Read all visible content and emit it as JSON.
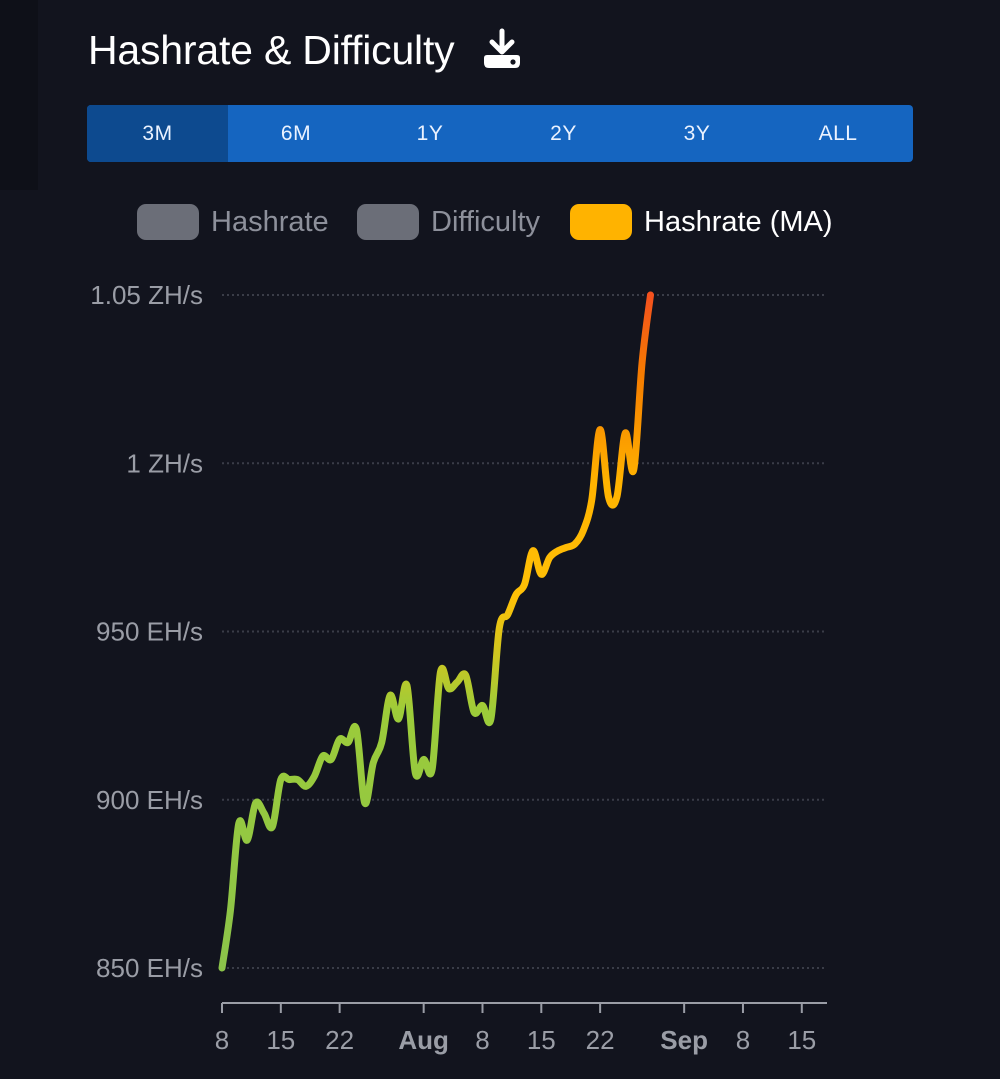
{
  "header": {
    "title": "Hashrate & Difficulty",
    "download_icon": "download-icon"
  },
  "range": {
    "active": "3M",
    "options": [
      "3M",
      "6M",
      "1Y",
      "2Y",
      "3Y",
      "ALL"
    ]
  },
  "colors": {
    "background": "#12141e",
    "range_bar": "#1565c0",
    "range_active": "#0d4a8f",
    "legend_off": "#6b6e78",
    "legend_on": "#ffb300",
    "line_gradient": [
      "#8bc34a",
      "#9ccc3a",
      "#ffc107",
      "#ffb300",
      "#f57c00",
      "#f4511e"
    ]
  },
  "chart_data": {
    "type": "line",
    "title": "",
    "legend": [
      {
        "name": "Hashrate",
        "enabled": false
      },
      {
        "name": "Difficulty",
        "enabled": false
      },
      {
        "name": "Hashrate (MA)",
        "enabled": true
      }
    ],
    "legend_position": "top",
    "y_ticks": [
      {
        "value": 850,
        "label": "850 EH/s"
      },
      {
        "value": 900,
        "label": "900 EH/s"
      },
      {
        "value": 950,
        "label": "950 EH/s"
      },
      {
        "value": 1000,
        "label": "1 ZH/s"
      },
      {
        "value": 1050,
        "label": "1.05 ZH/s"
      }
    ],
    "ylim": [
      850,
      1050
    ],
    "x_unit": "days",
    "xlim": [
      "2024-07-08",
      "2024-09-18"
    ],
    "x_ticks": [
      {
        "date": "2024-07-08",
        "label": "8",
        "bold": false
      },
      {
        "date": "2024-07-15",
        "label": "15",
        "bold": false
      },
      {
        "date": "2024-07-22",
        "label": "22",
        "bold": false
      },
      {
        "date": "2024-08-01",
        "label": "Aug",
        "bold": true
      },
      {
        "date": "2024-08-08",
        "label": "8",
        "bold": false
      },
      {
        "date": "2024-08-15",
        "label": "15",
        "bold": false
      },
      {
        "date": "2024-08-22",
        "label": "22",
        "bold": false
      },
      {
        "date": "2024-09-01",
        "label": "Sep",
        "bold": true
      },
      {
        "date": "2024-09-08",
        "label": "8",
        "bold": false
      },
      {
        "date": "2024-09-15",
        "label": "15",
        "bold": false
      }
    ],
    "grid": "horizontal-dotted",
    "series": [
      {
        "name": "Hashrate (MA)",
        "points": [
          [
            "2024-07-08",
            850
          ],
          [
            "2024-07-09",
            867
          ],
          [
            "2024-07-10",
            893
          ],
          [
            "2024-07-11",
            888
          ],
          [
            "2024-07-12",
            899
          ],
          [
            "2024-07-13",
            896
          ],
          [
            "2024-07-14",
            892
          ],
          [
            "2024-07-15",
            906
          ],
          [
            "2024-07-16",
            906
          ],
          [
            "2024-07-17",
            906
          ],
          [
            "2024-07-18",
            904
          ],
          [
            "2024-07-19",
            907
          ],
          [
            "2024-07-20",
            913
          ],
          [
            "2024-07-21",
            912
          ],
          [
            "2024-07-22",
            918
          ],
          [
            "2024-07-23",
            917
          ],
          [
            "2024-07-24",
            921
          ],
          [
            "2024-07-25",
            899
          ],
          [
            "2024-07-26",
            911
          ],
          [
            "2024-07-27",
            917
          ],
          [
            "2024-07-28",
            931
          ],
          [
            "2024-07-29",
            924
          ],
          [
            "2024-07-30",
            934
          ],
          [
            "2024-07-31",
            908
          ],
          [
            "2024-08-01",
            912
          ],
          [
            "2024-08-02",
            909
          ],
          [
            "2024-08-03",
            938
          ],
          [
            "2024-08-04",
            933
          ],
          [
            "2024-08-05",
            935
          ],
          [
            "2024-08-06",
            937
          ],
          [
            "2024-08-07",
            926
          ],
          [
            "2024-08-08",
            928
          ],
          [
            "2024-08-09",
            924
          ],
          [
            "2024-08-10",
            951
          ],
          [
            "2024-08-11",
            955
          ],
          [
            "2024-08-12",
            961
          ],
          [
            "2024-08-13",
            964
          ],
          [
            "2024-08-14",
            974
          ],
          [
            "2024-08-15",
            967
          ],
          [
            "2024-08-16",
            972
          ],
          [
            "2024-08-17",
            974
          ],
          [
            "2024-08-18",
            975
          ],
          [
            "2024-08-19",
            976
          ],
          [
            "2024-08-20",
            980
          ],
          [
            "2024-08-21",
            989
          ],
          [
            "2024-08-22",
            1010
          ],
          [
            "2024-08-23",
            990
          ],
          [
            "2024-08-24",
            990
          ],
          [
            "2024-08-25",
            1009
          ],
          [
            "2024-08-26",
            998
          ],
          [
            "2024-08-27",
            1030
          ],
          [
            "2024-08-28",
            1050
          ]
        ]
      }
    ]
  }
}
